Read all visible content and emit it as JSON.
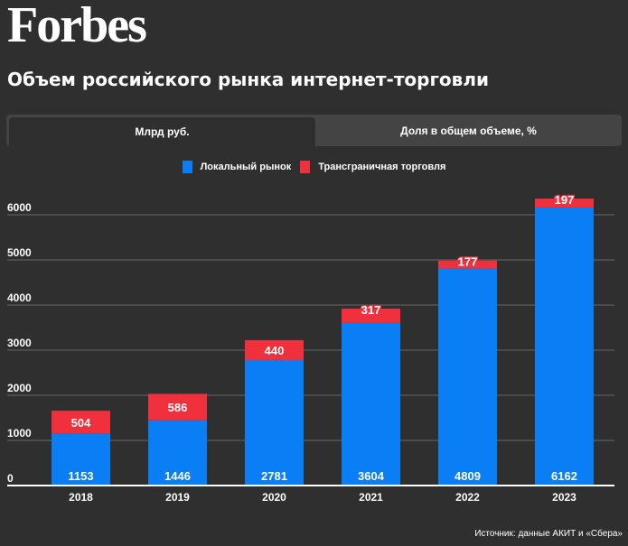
{
  "header": {
    "logo": "Forbes",
    "title": "Объем российского рынка интернет-торговли"
  },
  "tabs": [
    {
      "label": "Млрд руб.",
      "active": true
    },
    {
      "label": "Доля в общем объеме, %",
      "active": false
    }
  ],
  "colors": {
    "local": "#0a7ff5",
    "crossborder": "#f0303c",
    "grid": "#555555",
    "axis": "#ffffff"
  },
  "source": "Источник: данные АКИТ и «Сбера»",
  "chart_data": {
    "type": "bar",
    "stacked": true,
    "title": "Объем российского рынка интернет-торговли",
    "xlabel": "",
    "ylabel": "Млрд руб.",
    "ylim": [
      0,
      6000
    ],
    "yticks": [
      0,
      1000,
      2000,
      3000,
      4000,
      5000,
      6000
    ],
    "grid": true,
    "legend": "top-center",
    "categories": [
      "2018",
      "2019",
      "2020",
      "2021",
      "2022",
      "2023"
    ],
    "series": [
      {
        "name": "Локальный рынок",
        "color": "#0a7ff5",
        "values": [
          1153,
          1446,
          2781,
          3604,
          4809,
          6162
        ]
      },
      {
        "name": "Трансграничная торговля",
        "color": "#f0303c",
        "values": [
          504,
          586,
          440,
          317,
          177,
          197
        ]
      }
    ]
  }
}
